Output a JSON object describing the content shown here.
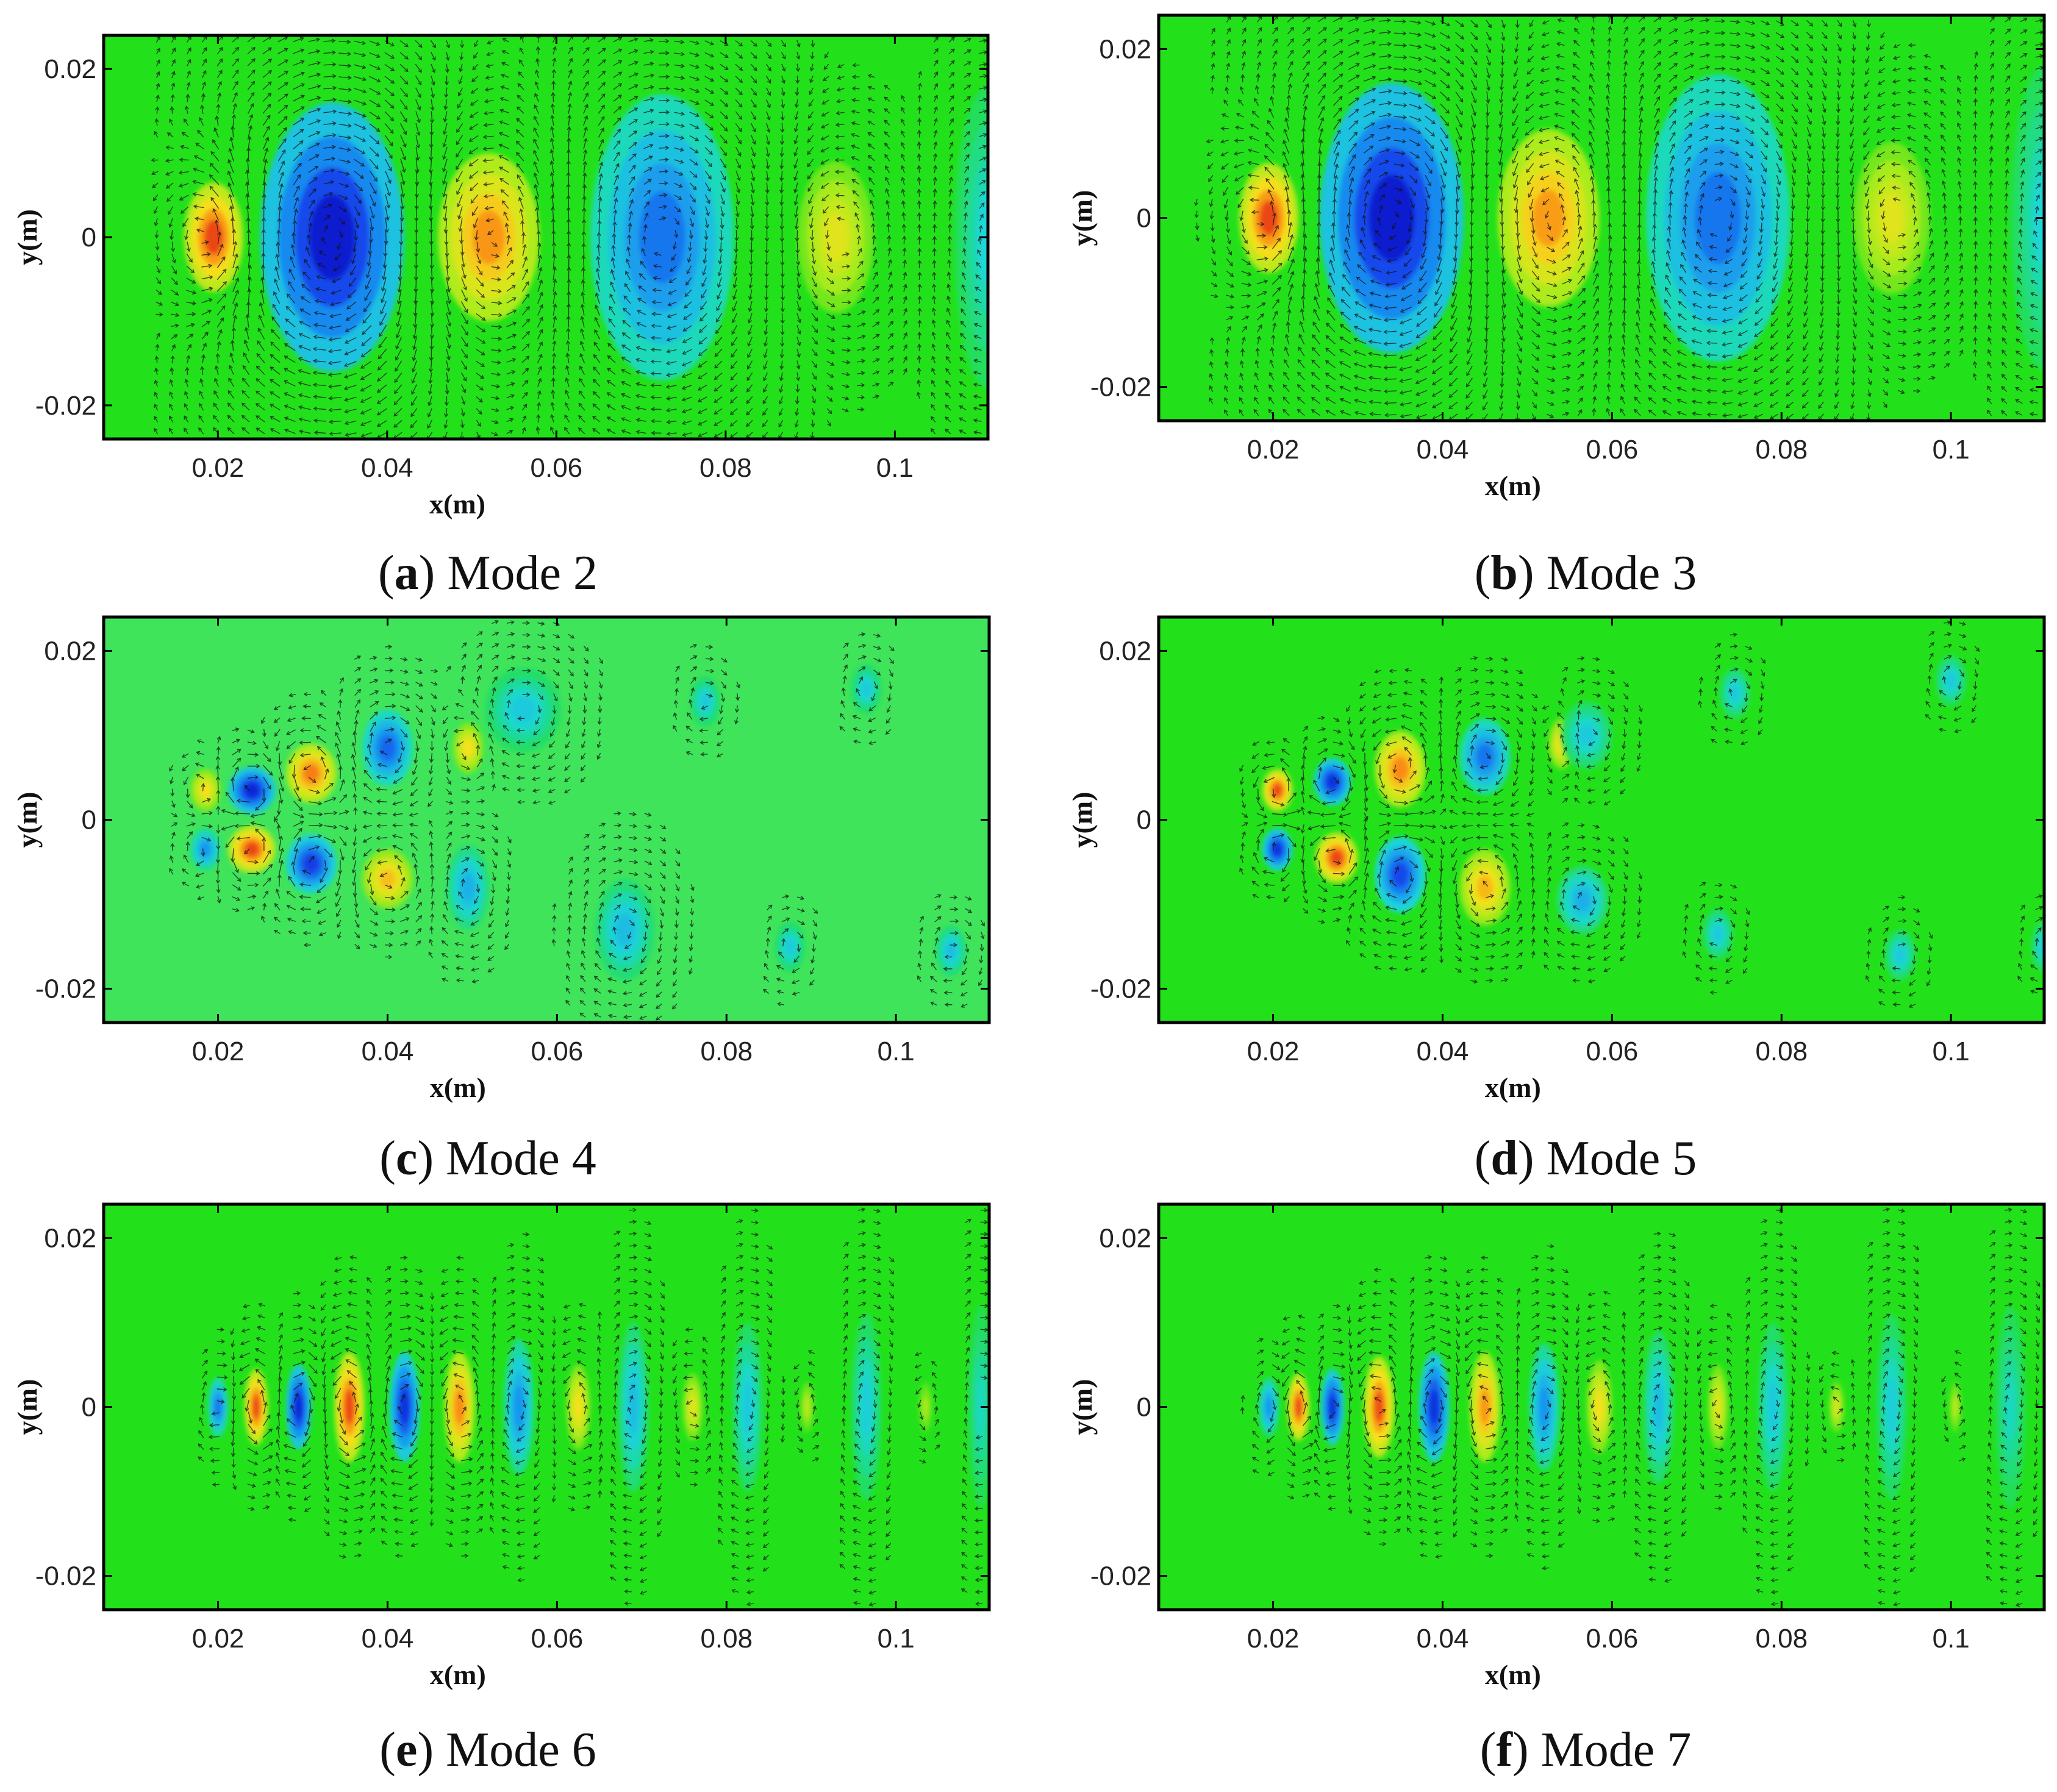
{
  "chart_data": [
    {
      "id": "a",
      "type": "heatmap",
      "title": "Mode 2",
      "caption_letter": "a",
      "caption_text": "Mode 2",
      "xlabel": "x(m)",
      "ylabel": "y(m)",
      "xlim": [
        0.0065,
        0.111
      ],
      "ylim": [
        -0.024,
        0.024
      ],
      "xticks": [
        0.02,
        0.04,
        0.06,
        0.08,
        0.1
      ],
      "xtick_labels": [
        "0.02",
        "0.04",
        "0.06",
        "0.08",
        "0.1"
      ],
      "yticks": [
        0.02,
        0,
        -0.02
      ],
      "ytick_labels": [
        "0.02",
        "0",
        "-0.02"
      ],
      "background_color": "#22e11a",
      "structures": [
        {
          "x": 0.0195,
          "y": 0,
          "wx": 0.0035,
          "wy": 0.0065,
          "v": 0.9
        },
        {
          "x": 0.0335,
          "y": 0,
          "wx": 0.0085,
          "wy": 0.016,
          "v": -0.95
        },
        {
          "x": 0.052,
          "y": 0,
          "wx": 0.006,
          "wy": 0.01,
          "v": 0.72
        },
        {
          "x": 0.0725,
          "y": 0,
          "wx": 0.0085,
          "wy": 0.017,
          "v": -0.6
        },
        {
          "x": 0.093,
          "y": 0,
          "wx": 0.0045,
          "wy": 0.009,
          "v": 0.42
        },
        {
          "x": 0.111,
          "y": 0,
          "wx": 0.004,
          "wy": 0.018,
          "v": -0.25
        }
      ]
    },
    {
      "id": "b",
      "type": "heatmap",
      "title": "Mode 3",
      "caption_letter": "b",
      "caption_text": "Mode 3",
      "xlabel": "x(m)",
      "ylabel": "y(m)",
      "xlim": [
        0.0065,
        0.111
      ],
      "ylim": [
        -0.024,
        0.024
      ],
      "xticks": [
        0.02,
        0.04,
        0.06,
        0.08,
        0.1
      ],
      "xtick_labels": [
        "0.02",
        "0.04",
        "0.06",
        "0.08",
        "0.1"
      ],
      "yticks": [
        0.02,
        0,
        -0.02
      ],
      "ytick_labels": [
        "0.02",
        "0",
        "-0.02"
      ],
      "background_color": "#22e11a",
      "structures": [
        {
          "x": 0.0195,
          "y": 0,
          "wx": 0.0035,
          "wy": 0.0065,
          "v": 0.9
        },
        {
          "x": 0.034,
          "y": 0,
          "wx": 0.0085,
          "wy": 0.016,
          "v": -0.95
        },
        {
          "x": 0.0525,
          "y": 0,
          "wx": 0.006,
          "wy": 0.0105,
          "v": 0.7
        },
        {
          "x": 0.0725,
          "y": 0,
          "wx": 0.0085,
          "wy": 0.017,
          "v": -0.6
        },
        {
          "x": 0.093,
          "y": 0,
          "wx": 0.0045,
          "wy": 0.009,
          "v": 0.42
        },
        {
          "x": 0.111,
          "y": 0,
          "wx": 0.004,
          "wy": 0.018,
          "v": -0.25
        }
      ]
    },
    {
      "id": "c",
      "type": "heatmap",
      "title": "Mode 4",
      "caption_letter": "c",
      "caption_text": "Mode 4",
      "xlabel": "x(m)",
      "ylabel": "y(m)",
      "xlim": [
        0.0065,
        0.111
      ],
      "ylim": [
        -0.024,
        0.024
      ],
      "xticks": [
        0.02,
        0.04,
        0.06,
        0.08,
        0.1
      ],
      "xtick_labels": [
        "0.02",
        "0.04",
        "0.06",
        "0.08",
        "0.1"
      ],
      "yticks": [
        0.02,
        0,
        -0.02
      ],
      "ytick_labels": [
        "0.02",
        "0",
        "-0.02"
      ],
      "background_color": "#3fe45a",
      "structures": [
        {
          "x": 0.0185,
          "y": 0.0035,
          "wx": 0.0018,
          "wy": 0.0025,
          "v": 0.5
        },
        {
          "x": 0.0185,
          "y": -0.0035,
          "wx": 0.0018,
          "wy": 0.0025,
          "v": -0.5
        },
        {
          "x": 0.024,
          "y": 0.0035,
          "wx": 0.0028,
          "wy": 0.0028,
          "v": -0.9
        },
        {
          "x": 0.024,
          "y": -0.0035,
          "wx": 0.0028,
          "wy": 0.0028,
          "v": 0.9
        },
        {
          "x": 0.031,
          "y": 0.0055,
          "wx": 0.003,
          "wy": 0.0035,
          "v": 0.78
        },
        {
          "x": 0.031,
          "y": -0.0052,
          "wx": 0.003,
          "wy": 0.0035,
          "v": -0.8
        },
        {
          "x": 0.04,
          "y": 0.0085,
          "wx": 0.003,
          "wy": 0.0045,
          "v": -0.65
        },
        {
          "x": 0.04,
          "y": -0.007,
          "wx": 0.003,
          "wy": 0.0035,
          "v": 0.6
        },
        {
          "x": 0.0495,
          "y": 0.0085,
          "wx": 0.0018,
          "wy": 0.003,
          "v": 0.5
        },
        {
          "x": 0.0495,
          "y": -0.008,
          "wx": 0.0025,
          "wy": 0.005,
          "v": -0.4
        },
        {
          "x": 0.056,
          "y": 0.013,
          "wx": 0.0045,
          "wy": 0.005,
          "v": -0.3
        },
        {
          "x": 0.068,
          "y": -0.013,
          "wx": 0.0035,
          "wy": 0.006,
          "v": -0.35
        },
        {
          "x": 0.0775,
          "y": 0.014,
          "wx": 0.0018,
          "wy": 0.003,
          "v": -0.3
        },
        {
          "x": 0.0875,
          "y": -0.015,
          "wx": 0.0018,
          "wy": 0.003,
          "v": -0.3
        },
        {
          "x": 0.0965,
          "y": 0.0155,
          "wx": 0.0018,
          "wy": 0.003,
          "v": -0.3
        },
        {
          "x": 0.1065,
          "y": -0.0155,
          "wx": 0.0018,
          "wy": 0.003,
          "v": -0.35
        }
      ]
    },
    {
      "id": "d",
      "type": "heatmap",
      "title": "Mode 5",
      "caption_letter": "d",
      "caption_text": "Mode 5",
      "xlabel": "x(m)",
      "ylabel": "y(m)",
      "xlim": [
        0.0065,
        0.111
      ],
      "ylim": [
        -0.024,
        0.024
      ],
      "xticks": [
        0.02,
        0.04,
        0.06,
        0.08,
        0.1
      ],
      "xtick_labels": [
        "0.02",
        "0.04",
        "0.06",
        "0.08",
        "0.1"
      ],
      "yticks": [
        0.02,
        0,
        -0.02
      ],
      "ytick_labels": [
        "0.02",
        "0",
        "-0.02"
      ],
      "background_color": "#22e11a",
      "structures": [
        {
          "x": 0.0205,
          "y": 0.0035,
          "wx": 0.0018,
          "wy": 0.0025,
          "v": 0.9
        },
        {
          "x": 0.0205,
          "y": -0.0035,
          "wx": 0.0018,
          "wy": 0.0025,
          "v": -0.85
        },
        {
          "x": 0.027,
          "y": 0.0045,
          "wx": 0.0022,
          "wy": 0.0028,
          "v": -0.85
        },
        {
          "x": 0.0275,
          "y": -0.0045,
          "wx": 0.0025,
          "wy": 0.003,
          "v": 0.9
        },
        {
          "x": 0.035,
          "y": 0.006,
          "wx": 0.003,
          "wy": 0.0045,
          "v": 0.75
        },
        {
          "x": 0.035,
          "y": -0.0065,
          "wx": 0.003,
          "wy": 0.0045,
          "v": -0.75
        },
        {
          "x": 0.045,
          "y": 0.0075,
          "wx": 0.003,
          "wy": 0.0045,
          "v": -0.6
        },
        {
          "x": 0.045,
          "y": -0.008,
          "wx": 0.003,
          "wy": 0.0045,
          "v": 0.62
        },
        {
          "x": 0.054,
          "y": 0.009,
          "wx": 0.0015,
          "wy": 0.003,
          "v": 0.5
        },
        {
          "x": 0.0565,
          "y": -0.0095,
          "wx": 0.003,
          "wy": 0.004,
          "v": -0.4
        },
        {
          "x": 0.057,
          "y": 0.01,
          "wx": 0.003,
          "wy": 0.004,
          "v": -0.3
        },
        {
          "x": 0.0745,
          "y": 0.015,
          "wx": 0.0018,
          "wy": 0.003,
          "v": -0.3
        },
        {
          "x": 0.0725,
          "y": -0.0135,
          "wx": 0.0018,
          "wy": 0.003,
          "v": -0.3
        },
        {
          "x": 0.094,
          "y": -0.016,
          "wx": 0.0018,
          "wy": 0.003,
          "v": -0.3
        },
        {
          "x": 0.1,
          "y": 0.0165,
          "wx": 0.0018,
          "wy": 0.003,
          "v": -0.3
        },
        {
          "x": 0.111,
          "y": -0.015,
          "wx": 0.0015,
          "wy": 0.003,
          "v": -0.3
        }
      ]
    },
    {
      "id": "e",
      "type": "heatmap",
      "title": "Mode 6",
      "caption_letter": "e",
      "caption_text": "Mode 6",
      "xlabel": "x(m)",
      "ylabel": "y(m)",
      "xlim": [
        0.0065,
        0.111
      ],
      "ylim": [
        -0.024,
        0.024
      ],
      "xticks": [
        0.02,
        0.04,
        0.06,
        0.08,
        0.1
      ],
      "xtick_labels": [
        "0.02",
        "0.04",
        "0.06",
        "0.08",
        "0.1"
      ],
      "yticks": [
        0.02,
        0,
        -0.02
      ],
      "ytick_labels": [
        "0.02",
        "0",
        "-0.02"
      ],
      "background_color": "#22e11a",
      "structures": [
        {
          "x": 0.02,
          "y": 0,
          "wx": 0.0012,
          "wy": 0.0035,
          "v": -0.6
        },
        {
          "x": 0.0245,
          "y": 0,
          "wx": 0.0014,
          "wy": 0.0045,
          "v": 0.9
        },
        {
          "x": 0.0295,
          "y": 0,
          "wx": 0.0015,
          "wy": 0.005,
          "v": -0.9
        },
        {
          "x": 0.0355,
          "y": 0,
          "wx": 0.0018,
          "wy": 0.0065,
          "v": 0.9
        },
        {
          "x": 0.042,
          "y": 0,
          "wx": 0.0018,
          "wy": 0.0065,
          "v": -0.85
        },
        {
          "x": 0.0485,
          "y": 0,
          "wx": 0.0018,
          "wy": 0.0065,
          "v": 0.75
        },
        {
          "x": 0.0555,
          "y": 0,
          "wx": 0.0018,
          "wy": 0.008,
          "v": -0.5
        },
        {
          "x": 0.0625,
          "y": 0,
          "wx": 0.0014,
          "wy": 0.005,
          "v": 0.5
        },
        {
          "x": 0.069,
          "y": 0,
          "wx": 0.0018,
          "wy": 0.01,
          "v": -0.35
        },
        {
          "x": 0.076,
          "y": 0,
          "wx": 0.0012,
          "wy": 0.004,
          "v": 0.42
        },
        {
          "x": 0.0825,
          "y": 0,
          "wx": 0.0018,
          "wy": 0.01,
          "v": -0.3
        },
        {
          "x": 0.0895,
          "y": 0,
          "wx": 0.0008,
          "wy": 0.003,
          "v": 0.3
        },
        {
          "x": 0.0965,
          "y": 0,
          "wx": 0.0018,
          "wy": 0.011,
          "v": -0.28
        },
        {
          "x": 0.1035,
          "y": 0,
          "wx": 0.0008,
          "wy": 0.003,
          "v": 0.25
        },
        {
          "x": 0.11,
          "y": 0,
          "wx": 0.0015,
          "wy": 0.012,
          "v": -0.22
        }
      ]
    },
    {
      "id": "f",
      "type": "heatmap",
      "title": "Mode 7",
      "caption_letter": "f",
      "caption_text": "Mode 7",
      "xlabel": "x(m)",
      "ylabel": "y(m)",
      "xlim": [
        0.0065,
        0.111
      ],
      "ylim": [
        -0.024,
        0.024
      ],
      "xticks": [
        0.02,
        0.04,
        0.06,
        0.08,
        0.1
      ],
      "xtick_labels": [
        "0.02",
        "0.04",
        "0.06",
        "0.08",
        "0.1"
      ],
      "yticks": [
        0.02,
        0,
        -0.02
      ],
      "ytick_labels": [
        "0.02",
        "0",
        "-0.02"
      ],
      "background_color": "#22e11a",
      "structures": [
        {
          "x": 0.0195,
          "y": 0,
          "wx": 0.0012,
          "wy": 0.0035,
          "v": -0.5
        },
        {
          "x": 0.023,
          "y": 0,
          "wx": 0.0013,
          "wy": 0.004,
          "v": 0.9
        },
        {
          "x": 0.027,
          "y": 0,
          "wx": 0.0014,
          "wy": 0.0045,
          "v": -0.85
        },
        {
          "x": 0.0325,
          "y": 0,
          "wx": 0.0018,
          "wy": 0.006,
          "v": 0.88
        },
        {
          "x": 0.039,
          "y": 0,
          "wx": 0.0018,
          "wy": 0.0065,
          "v": -0.85
        },
        {
          "x": 0.045,
          "y": 0,
          "wx": 0.0018,
          "wy": 0.0065,
          "v": 0.72
        },
        {
          "x": 0.052,
          "y": 0,
          "wx": 0.0018,
          "wy": 0.0075,
          "v": -0.5
        },
        {
          "x": 0.0585,
          "y": 0,
          "wx": 0.0015,
          "wy": 0.0055,
          "v": 0.5
        },
        {
          "x": 0.0655,
          "y": 0,
          "wx": 0.0018,
          "wy": 0.009,
          "v": -0.35
        },
        {
          "x": 0.0725,
          "y": 0,
          "wx": 0.0012,
          "wy": 0.005,
          "v": 0.42
        },
        {
          "x": 0.079,
          "y": 0,
          "wx": 0.0018,
          "wy": 0.01,
          "v": -0.3
        },
        {
          "x": 0.0865,
          "y": 0,
          "wx": 0.0009,
          "wy": 0.003,
          "v": 0.38
        },
        {
          "x": 0.093,
          "y": 0,
          "wx": 0.0018,
          "wy": 0.011,
          "v": -0.28
        },
        {
          "x": 0.1005,
          "y": 0,
          "wx": 0.0007,
          "wy": 0.003,
          "v": 0.3
        },
        {
          "x": 0.107,
          "y": 0,
          "wx": 0.0018,
          "wy": 0.012,
          "v": -0.22
        }
      ]
    }
  ]
}
